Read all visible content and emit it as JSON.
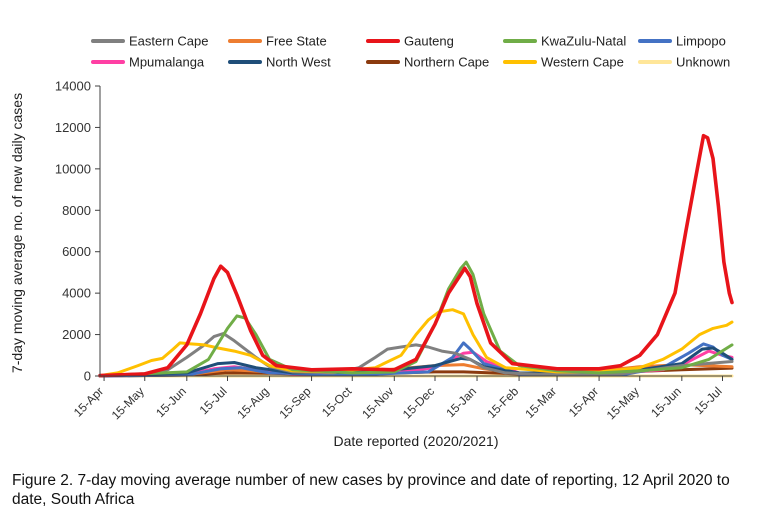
{
  "caption": "Figure 2. 7-day moving average number of new cases by province and date of reporting, 12 April 2020 to date, South Africa",
  "chart_data": {
    "type": "line",
    "xlabel": "Date reported (2020/2021)",
    "ylabel": "7-day moving average no. of new daily cases",
    "ylim": [
      0,
      14000
    ],
    "yticks": [
      0,
      2000,
      4000,
      6000,
      8000,
      10000,
      12000,
      14000
    ],
    "ytick_labels": [
      "0",
      "2000",
      "4000",
      "6000",
      "8000",
      "10000",
      "12000",
      "14000"
    ],
    "xlim": [
      "2020-04-12",
      "2021-07-22"
    ],
    "xticks": [
      "2020-04-15",
      "2020-05-15",
      "2020-06-15",
      "2020-07-15",
      "2020-08-15",
      "2020-09-15",
      "2020-10-15",
      "2020-11-15",
      "2020-12-15",
      "2021-01-15",
      "2021-02-15",
      "2021-03-15",
      "2021-04-15",
      "2021-05-15",
      "2021-06-15",
      "2021-07-15"
    ],
    "xtick_labels": [
      "15-Apr",
      "15-May",
      "15-Jun",
      "15-Jul",
      "15-Aug",
      "15-Sep",
      "15-Oct",
      "15-Nov",
      "15-Dec",
      "15-Jan",
      "15-Feb",
      "15-Mar",
      "15-Apr",
      "15-May",
      "15-Jun",
      "15-Jul"
    ],
    "grid": false,
    "legend_position": "top",
    "series": [
      {
        "name": "Eastern Cape",
        "color": "#808080",
        "points": [
          [
            "2020-04-12",
            20
          ],
          [
            "2020-05-15",
            100
          ],
          [
            "2020-06-01",
            300
          ],
          [
            "2020-06-15",
            900
          ],
          [
            "2020-06-28",
            1500
          ],
          [
            "2020-07-05",
            1900
          ],
          [
            "2020-07-12",
            2050
          ],
          [
            "2020-07-20",
            1700
          ],
          [
            "2020-07-28",
            1300
          ],
          [
            "2020-08-05",
            900
          ],
          [
            "2020-08-15",
            450
          ],
          [
            "2020-09-01",
            200
          ],
          [
            "2020-10-01",
            150
          ],
          [
            "2020-10-20",
            400
          ],
          [
            "2020-11-01",
            900
          ],
          [
            "2020-11-10",
            1300
          ],
          [
            "2020-11-20",
            1400
          ],
          [
            "2020-12-01",
            1500
          ],
          [
            "2020-12-10",
            1400
          ],
          [
            "2020-12-20",
            1200
          ],
          [
            "2020-12-30",
            1100
          ],
          [
            "2021-01-10",
            800
          ],
          [
            "2021-01-20",
            400
          ],
          [
            "2021-02-05",
            150
          ],
          [
            "2021-03-01",
            80
          ],
          [
            "2021-05-01",
            100
          ],
          [
            "2021-06-15",
            500
          ],
          [
            "2021-07-22",
            700
          ]
        ]
      },
      {
        "name": "Free State",
        "color": "#ED7D31",
        "points": [
          [
            "2020-04-12",
            0
          ],
          [
            "2020-06-15",
            60
          ],
          [
            "2020-07-15",
            300
          ],
          [
            "2020-08-01",
            250
          ],
          [
            "2020-09-01",
            120
          ],
          [
            "2020-11-01",
            250
          ],
          [
            "2020-12-15",
            500
          ],
          [
            "2021-01-05",
            550
          ],
          [
            "2021-01-20",
            350
          ],
          [
            "2021-02-15",
            120
          ],
          [
            "2021-04-15",
            250
          ],
          [
            "2021-05-15",
            450
          ],
          [
            "2021-06-15",
            550
          ],
          [
            "2021-07-22",
            450
          ]
        ]
      },
      {
        "name": "Gauteng",
        "color": "#E8141A",
        "points": [
          [
            "2020-04-12",
            20
          ],
          [
            "2020-05-15",
            100
          ],
          [
            "2020-06-01",
            400
          ],
          [
            "2020-06-15",
            1500
          ],
          [
            "2020-06-25",
            3000
          ],
          [
            "2020-07-05",
            4700
          ],
          [
            "2020-07-10",
            5300
          ],
          [
            "2020-07-15",
            5000
          ],
          [
            "2020-07-22",
            3900
          ],
          [
            "2020-08-01",
            2200
          ],
          [
            "2020-08-10",
            1000
          ],
          [
            "2020-08-20",
            500
          ],
          [
            "2020-09-15",
            300
          ],
          [
            "2020-10-15",
            350
          ],
          [
            "2020-11-15",
            300
          ],
          [
            "2020-12-01",
            800
          ],
          [
            "2020-12-15",
            2500
          ],
          [
            "2020-12-25",
            4000
          ],
          [
            "2021-01-06",
            5200
          ],
          [
            "2021-01-10",
            4800
          ],
          [
            "2021-01-15",
            3500
          ],
          [
            "2021-01-25",
            1600
          ],
          [
            "2021-02-10",
            600
          ],
          [
            "2021-03-15",
            350
          ],
          [
            "2021-04-15",
            350
          ],
          [
            "2021-05-01",
            500
          ],
          [
            "2021-05-15",
            1000
          ],
          [
            "2021-05-28",
            2000
          ],
          [
            "2021-06-10",
            4000
          ],
          [
            "2021-06-18",
            7000
          ],
          [
            "2021-06-25",
            9500
          ],
          [
            "2021-07-01",
            11600
          ],
          [
            "2021-07-04",
            11500
          ],
          [
            "2021-07-08",
            10500
          ],
          [
            "2021-07-12",
            8200
          ],
          [
            "2021-07-16",
            5500
          ],
          [
            "2021-07-20",
            4000
          ],
          [
            "2021-07-22",
            3550
          ]
        ]
      },
      {
        "name": "KwaZulu-Natal",
        "color": "#70AD47",
        "points": [
          [
            "2020-04-12",
            20
          ],
          [
            "2020-06-15",
            200
          ],
          [
            "2020-07-01",
            800
          ],
          [
            "2020-07-15",
            2300
          ],
          [
            "2020-07-22",
            2900
          ],
          [
            "2020-07-28",
            2800
          ],
          [
            "2020-08-05",
            2000
          ],
          [
            "2020-08-15",
            800
          ],
          [
            "2020-09-01",
            300
          ],
          [
            "2020-10-15",
            150
          ],
          [
            "2020-11-15",
            200
          ],
          [
            "2020-12-01",
            700
          ],
          [
            "2020-12-15",
            2500
          ],
          [
            "2020-12-25",
            4200
          ],
          [
            "2021-01-03",
            5200
          ],
          [
            "2021-01-07",
            5500
          ],
          [
            "2021-01-12",
            4900
          ],
          [
            "2021-01-20",
            3000
          ],
          [
            "2021-02-01",
            1200
          ],
          [
            "2021-02-15",
            500
          ],
          [
            "2021-03-15",
            250
          ],
          [
            "2021-04-15",
            150
          ],
          [
            "2021-05-15",
            250
          ],
          [
            "2021-06-15",
            400
          ],
          [
            "2021-07-05",
            800
          ],
          [
            "2021-07-22",
            1500
          ]
        ]
      },
      {
        "name": "Limpopo",
        "color": "#4472C4",
        "points": [
          [
            "2020-04-12",
            0
          ],
          [
            "2020-06-15",
            50
          ],
          [
            "2020-07-10",
            350
          ],
          [
            "2020-07-25",
            400
          ],
          [
            "2020-08-15",
            150
          ],
          [
            "2020-10-15",
            50
          ],
          [
            "2020-12-10",
            200
          ],
          [
            "2020-12-28",
            900
          ],
          [
            "2021-01-05",
            1600
          ],
          [
            "2021-01-10",
            1300
          ],
          [
            "2021-01-20",
            600
          ],
          [
            "2021-02-15",
            100
          ],
          [
            "2021-05-01",
            50
          ],
          [
            "2021-06-01",
            400
          ],
          [
            "2021-06-20",
            1100
          ],
          [
            "2021-07-01",
            1550
          ],
          [
            "2021-07-08",
            1400
          ],
          [
            "2021-07-15",
            1000
          ],
          [
            "2021-07-22",
            800
          ]
        ]
      },
      {
        "name": "Mpumalanga",
        "color": "#FF3FA4",
        "points": [
          [
            "2020-04-12",
            0
          ],
          [
            "2020-06-15",
            80
          ],
          [
            "2020-07-05",
            350
          ],
          [
            "2020-07-20",
            450
          ],
          [
            "2020-08-05",
            300
          ],
          [
            "2020-09-01",
            100
          ],
          [
            "2020-11-01",
            100
          ],
          [
            "2020-12-15",
            400
          ],
          [
            "2021-01-05",
            1100
          ],
          [
            "2021-01-12",
            1150
          ],
          [
            "2021-01-22",
            700
          ],
          [
            "2021-02-15",
            150
          ],
          [
            "2021-04-15",
            80
          ],
          [
            "2021-06-01",
            300
          ],
          [
            "2021-06-20",
            700
          ],
          [
            "2021-07-05",
            1200
          ],
          [
            "2021-07-15",
            1000
          ],
          [
            "2021-07-22",
            900
          ]
        ]
      },
      {
        "name": "North West",
        "color": "#1F4E79",
        "points": [
          [
            "2020-04-12",
            0
          ],
          [
            "2020-06-15",
            150
          ],
          [
            "2020-07-08",
            600
          ],
          [
            "2020-07-20",
            650
          ],
          [
            "2020-08-05",
            400
          ],
          [
            "2020-09-01",
            150
          ],
          [
            "2020-11-01",
            200
          ],
          [
            "2020-12-15",
            500
          ],
          [
            "2021-01-03",
            850
          ],
          [
            "2021-01-10",
            800
          ],
          [
            "2021-01-20",
            450
          ],
          [
            "2021-02-15",
            150
          ],
          [
            "2021-04-15",
            100
          ],
          [
            "2021-05-15",
            300
          ],
          [
            "2021-06-15",
            600
          ],
          [
            "2021-06-30",
            1300
          ],
          [
            "2021-07-08",
            1350
          ],
          [
            "2021-07-15",
            1100
          ],
          [
            "2021-07-22",
            800
          ]
        ]
      },
      {
        "name": "Northern Cape",
        "color": "#8B3A0E",
        "points": [
          [
            "2020-04-12",
            0
          ],
          [
            "2020-06-15",
            50
          ],
          [
            "2020-07-15",
            150
          ],
          [
            "2020-08-15",
            130
          ],
          [
            "2020-09-15",
            80
          ],
          [
            "2020-11-01",
            120
          ],
          [
            "2020-12-15",
            200
          ],
          [
            "2021-01-05",
            200
          ],
          [
            "2021-02-15",
            100
          ],
          [
            "2021-04-15",
            120
          ],
          [
            "2021-05-15",
            220
          ],
          [
            "2021-06-15",
            300
          ],
          [
            "2021-07-22",
            380
          ]
        ]
      },
      {
        "name": "Western Cape",
        "color": "#FFC000",
        "points": [
          [
            "2020-04-12",
            20
          ],
          [
            "2020-04-25",
            150
          ],
          [
            "2020-05-10",
            500
          ],
          [
            "2020-05-20",
            750
          ],
          [
            "2020-05-28",
            850
          ],
          [
            "2020-06-05",
            1300
          ],
          [
            "2020-06-10",
            1600
          ],
          [
            "2020-06-18",
            1550
          ],
          [
            "2020-06-28",
            1500
          ],
          [
            "2020-07-08",
            1350
          ],
          [
            "2020-07-20",
            1200
          ],
          [
            "2020-08-01",
            1000
          ],
          [
            "2020-08-15",
            500
          ],
          [
            "2020-09-01",
            250
          ],
          [
            "2020-10-01",
            200
          ],
          [
            "2020-11-01",
            400
          ],
          [
            "2020-11-20",
            1000
          ],
          [
            "2020-12-01",
            2000
          ],
          [
            "2020-12-10",
            2700
          ],
          [
            "2020-12-18",
            3100
          ],
          [
            "2020-12-28",
            3200
          ],
          [
            "2021-01-05",
            3000
          ],
          [
            "2021-01-12",
            2000
          ],
          [
            "2021-01-22",
            900
          ],
          [
            "2021-02-05",
            400
          ],
          [
            "2021-03-15",
            200
          ],
          [
            "2021-04-15",
            200
          ],
          [
            "2021-05-15",
            400
          ],
          [
            "2021-06-01",
            800
          ],
          [
            "2021-06-15",
            1300
          ],
          [
            "2021-06-28",
            2000
          ],
          [
            "2021-07-08",
            2300
          ],
          [
            "2021-07-18",
            2450
          ],
          [
            "2021-07-22",
            2600
          ]
        ]
      },
      {
        "name": "Unknown",
        "color": "#FFE699",
        "points": [
          [
            "2020-04-12",
            0
          ],
          [
            "2021-07-22",
            0
          ]
        ]
      }
    ]
  }
}
